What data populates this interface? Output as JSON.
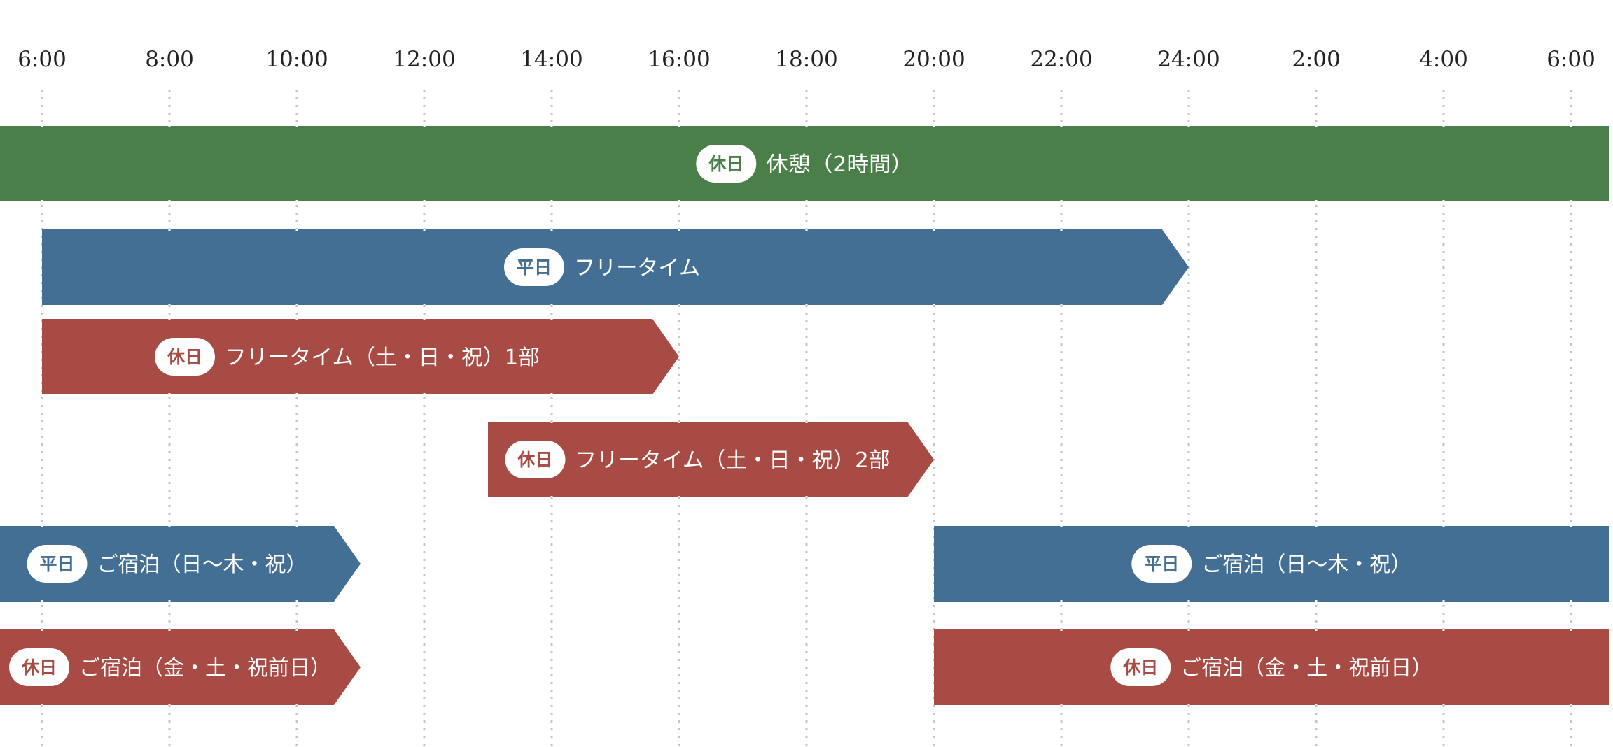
{
  "chart_data": {
    "type": "bar",
    "subtype": "timeline",
    "title": "",
    "x_unit": "hour",
    "x_range": [
      5.33,
      30.6
    ],
    "ticks": [
      {
        "value": 6,
        "label": "6:00"
      },
      {
        "value": 8,
        "label": "8:00"
      },
      {
        "value": 10,
        "label": "10:00"
      },
      {
        "value": 12,
        "label": "12:00"
      },
      {
        "value": 14,
        "label": "14:00"
      },
      {
        "value": 16,
        "label": "16:00"
      },
      {
        "value": 18,
        "label": "18:00"
      },
      {
        "value": 20,
        "label": "20:00"
      },
      {
        "value": 22,
        "label": "22:00"
      },
      {
        "value": 24,
        "label": "24:00"
      },
      {
        "value": 26,
        "label": "2:00"
      },
      {
        "value": 28,
        "label": "4:00"
      },
      {
        "value": 30,
        "label": "6:00"
      }
    ],
    "grid": true,
    "colors": {
      "holiday_green": "#4a7f4a",
      "weekday": "#426f93",
      "holiday": "#a84b44",
      "grid": "#c4c4c4"
    },
    "bars": [
      {
        "row": 0,
        "badge": "休日",
        "label": "休憩（2時間）",
        "start": 5.33,
        "end": 30.6,
        "color": "holiday_green",
        "arrow": false
      },
      {
        "row": 1,
        "badge": "平日",
        "label": "フリータイム",
        "start": 6,
        "end": 24,
        "color": "weekday",
        "arrow": true
      },
      {
        "row": 2,
        "badge": "休日",
        "label": "フリータイム（土・日・祝）1部",
        "start": 6,
        "end": 16,
        "color": "holiday",
        "arrow": true
      },
      {
        "row": 3,
        "badge": "休日",
        "label": "フリータイム（土・日・祝）2部",
        "start": 13,
        "end": 20,
        "color": "holiday",
        "arrow": true
      },
      {
        "row": 4,
        "badge": "平日",
        "label": "ご宿泊（日〜木・祝）",
        "start": 5.33,
        "end": 11,
        "color": "weekday",
        "arrow": true
      },
      {
        "row": 4,
        "badge": "平日",
        "label": "ご宿泊（日〜木・祝）",
        "start": 20,
        "end": 30.6,
        "color": "weekday",
        "arrow": false
      },
      {
        "row": 5,
        "badge": "休日",
        "label": "ご宿泊（金・土・祝前日）",
        "start": 5.33,
        "end": 11,
        "color": "holiday",
        "arrow": true
      },
      {
        "row": 5,
        "badge": "休日",
        "label": "ご宿泊（金・土・祝前日）",
        "start": 20,
        "end": 30.6,
        "color": "holiday",
        "arrow": false
      }
    ]
  }
}
